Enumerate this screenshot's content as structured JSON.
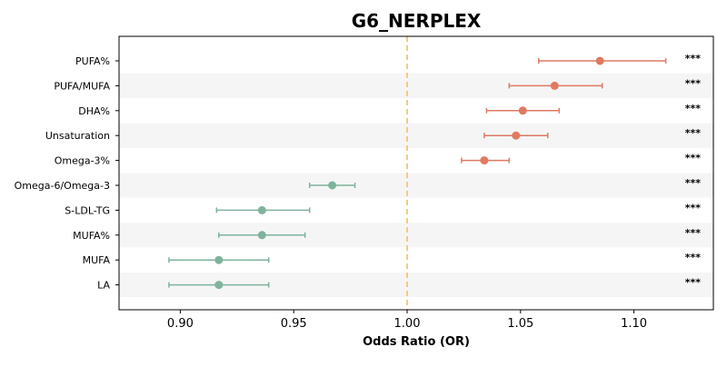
{
  "chart_data": {
    "type": "forest",
    "title": "G6_NERPLEX",
    "xlabel": "Odds Ratio (OR)",
    "xlim": [
      0.873,
      1.135
    ],
    "xticks": [
      "0.90",
      "0.95",
      "1.00",
      "1.05",
      "1.10"
    ],
    "reference_line": 1.0,
    "colors": {
      "positive": "#e07a62",
      "negative": "#7fb39c",
      "reference": "#f5c985",
      "stripe": "#f5f5f5"
    },
    "rows": [
      {
        "label": "PUFA%",
        "or": 1.085,
        "ci_low": 1.058,
        "ci_high": 1.114,
        "sig": "***"
      },
      {
        "label": "PUFA/MUFA",
        "or": 1.065,
        "ci_low": 1.045,
        "ci_high": 1.086,
        "sig": "***"
      },
      {
        "label": "DHA%",
        "or": 1.051,
        "ci_low": 1.035,
        "ci_high": 1.067,
        "sig": "***"
      },
      {
        "label": "Unsaturation",
        "or": 1.048,
        "ci_low": 1.034,
        "ci_high": 1.062,
        "sig": "***"
      },
      {
        "label": "Omega-3%",
        "or": 1.034,
        "ci_low": 1.024,
        "ci_high": 1.045,
        "sig": "***"
      },
      {
        "label": "Omega-6/Omega-3",
        "or": 0.967,
        "ci_low": 0.957,
        "ci_high": 0.977,
        "sig": "***"
      },
      {
        "label": "S-LDL-TG",
        "or": 0.936,
        "ci_low": 0.916,
        "ci_high": 0.957,
        "sig": "***"
      },
      {
        "label": "MUFA%",
        "or": 0.936,
        "ci_low": 0.917,
        "ci_high": 0.955,
        "sig": "***"
      },
      {
        "label": "MUFA",
        "or": 0.917,
        "ci_low": 0.895,
        "ci_high": 0.939,
        "sig": "***"
      },
      {
        "label": "LA",
        "or": 0.917,
        "ci_low": 0.895,
        "ci_high": 0.939,
        "sig": "***"
      }
    ]
  }
}
